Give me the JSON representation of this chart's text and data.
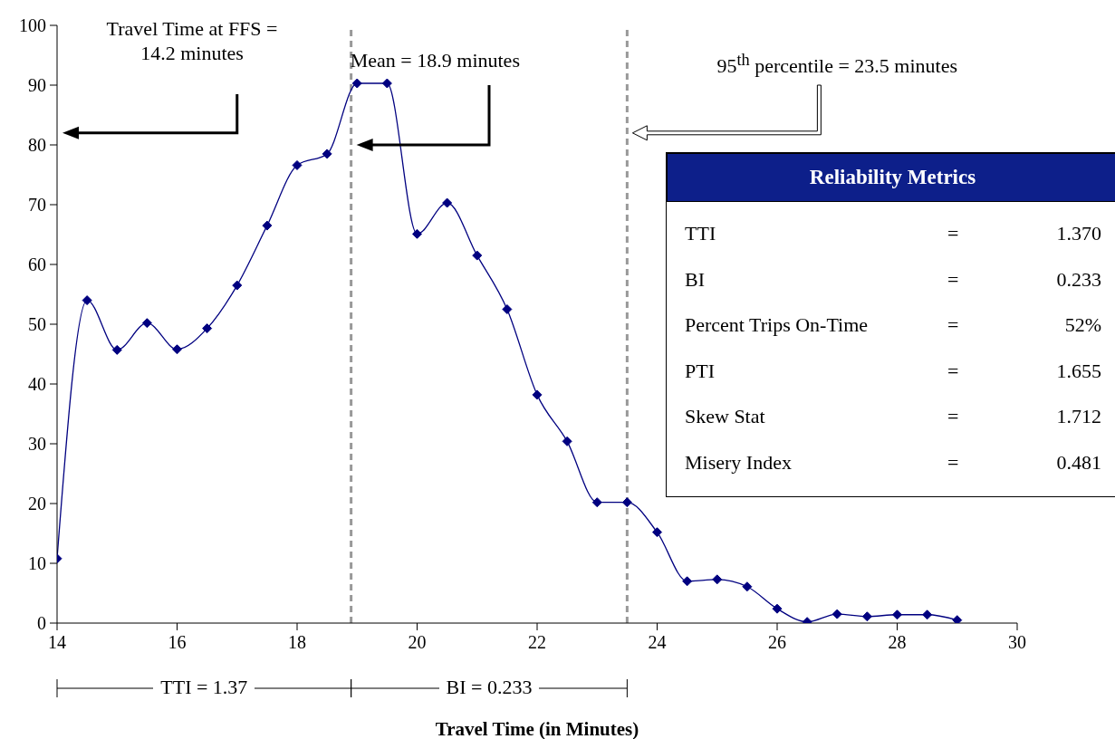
{
  "chart_data": [
    {
      "type": "line",
      "xlabel": "Travel Time (in Minutes)",
      "x": [
        14,
        14.5,
        15,
        15.5,
        16,
        16.5,
        17,
        17.5,
        18,
        18.5,
        19,
        19.5,
        20,
        20.5,
        21,
        21.5,
        22,
        22.5,
        23,
        23.5,
        24,
        24.5,
        25,
        25.5,
        26,
        26.5,
        27,
        27.5,
        28,
        28.5,
        29
      ],
      "series": [
        {
          "color": "#000080",
          "values": [
            10.8,
            54,
            45.7,
            50.2,
            45.8,
            49.3,
            56.5,
            66.5,
            76.6,
            78.5,
            90.3,
            90.3,
            65.1,
            70.3,
            61.5,
            52.5,
            38.2,
            30.4,
            20.2,
            20.2,
            15.2,
            7,
            7.3,
            6.1,
            2.4,
            0.2,
            1.5,
            1.1,
            1.4,
            1.4,
            0.5
          ]
        }
      ],
      "xlim": [
        14,
        30
      ],
      "xticks": [
        14,
        16,
        18,
        20,
        22,
        24,
        26,
        28,
        30
      ],
      "ylim": [
        0,
        100
      ],
      "yticks": [
        0,
        10,
        20,
        30,
        40,
        50,
        60,
        70,
        80,
        90,
        100
      ],
      "grid": false,
      "legend": false,
      "marker": "diamond",
      "line_style": "solid",
      "ref_lines": [
        {
          "axis": "x",
          "value": 18.9,
          "color": "#999999",
          "line_style": "dashed"
        },
        {
          "axis": "x",
          "value": 23.5,
          "color": "#999999",
          "line_style": "dashed"
        }
      ],
      "annotations": [
        "Travel Time at FFS = 14.2 minutes",
        "Mean = 18.9 minutes",
        "95$^{th}$ percentile = 23.5 minutes",
        "TTI = 1.37",
        "BI = 0.233"
      ]
    },
    {
      "type": "other",
      "title": "Reliability Metrics",
      "annotations": [
        "TTI",
        "=",
        "1.370",
        "BI",
        "=",
        "0.233",
        "Percent Trips On-Time",
        "=",
        "52%",
        "PTI",
        "=",
        "1.655",
        "Skew Stat",
        "=",
        "1.712",
        "Misery Index",
        "=",
        "0.481"
      ]
    }
  ]
}
